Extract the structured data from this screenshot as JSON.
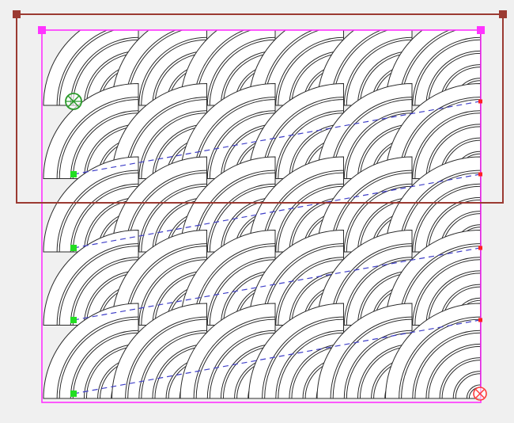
{
  "colors": {
    "background": "#f0f0f0",
    "pattern_fill": "#ffffff",
    "pattern_stroke": "#2b2b2b",
    "pattern_frame": "#ff33ff",
    "hoop_frame": "#9b3a32",
    "guide_line": "#3f3fc8",
    "row_start_marker": "#22dd22",
    "row_end_marker": "#ff2222",
    "start_point_icon": "#2a9a2a",
    "end_point_icon": "#ff3a3a"
  },
  "pattern": {
    "name": "clamshell-arc-quilting-pattern",
    "rows": 5,
    "columns": 6,
    "arcs_per_shell": 6
  },
  "icons": {
    "start_point": "start-point-crosshair-icon",
    "end_point": "end-point-crosshair-icon"
  }
}
